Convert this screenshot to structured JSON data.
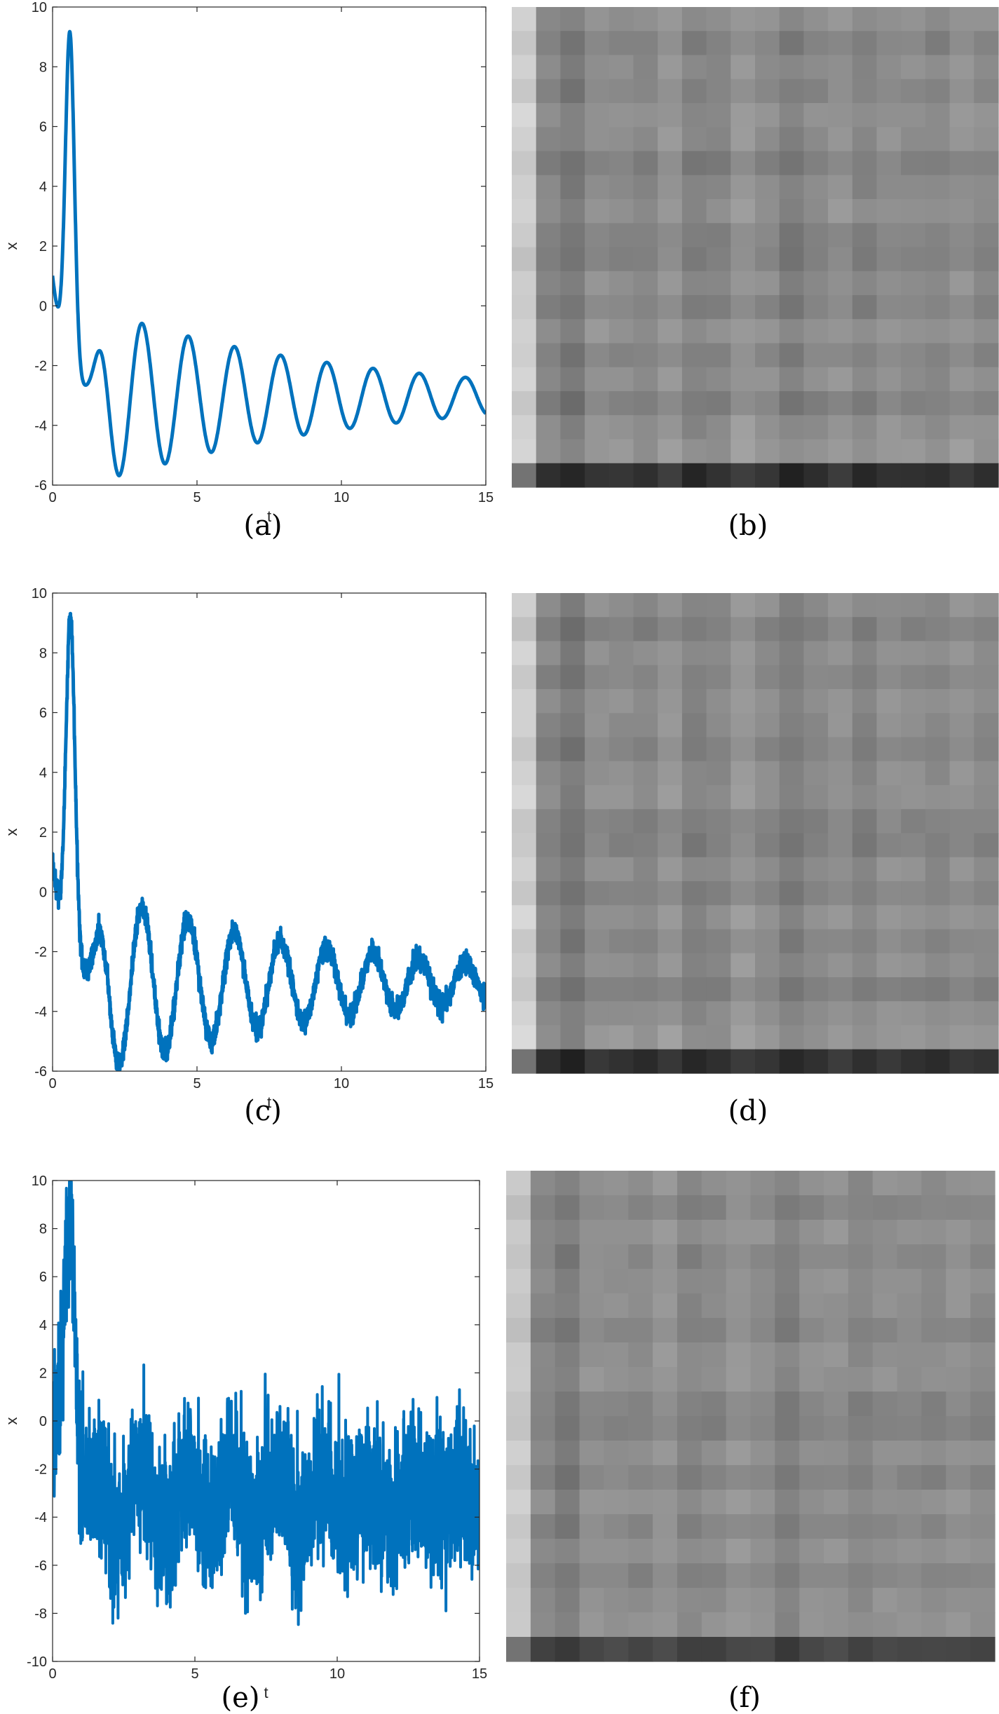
{
  "colors": {
    "line": "#0072BD",
    "axis": "#262626",
    "background": "#ffffff"
  },
  "chart_data": [
    {
      "panel": "a",
      "caption": "(a)",
      "type": "line",
      "xlabel": "t",
      "ylabel": "x",
      "xlim": [
        0,
        15
      ],
      "ylim": [
        -6,
        10
      ],
      "xticks": [
        "0",
        "5",
        "10",
        "15"
      ],
      "yticks": [
        "-6",
        "-4",
        "-2",
        "0",
        "2",
        "4",
        "6",
        "8",
        "10"
      ],
      "grid": false,
      "noise": 0,
      "model": {
        "x0": 1.0,
        "t_peak": 0.6,
        "peak": 8.1,
        "peak_width": 0.22,
        "offset": -3.05,
        "A0": 2.7,
        "decay": 0.118,
        "period": 1.6,
        "t_min": 2.3
      },
      "series": [
        {
          "x": [
            0,
            0.6,
            1.3,
            2.3,
            3.0,
            3.85,
            4.6,
            5.45,
            6.15,
            7.0,
            7.75,
            8.6,
            9.3,
            10.15,
            10.9,
            11.75,
            12.5,
            13.3,
            14.05,
            14.85,
            15
          ],
          "y": [
            1.0,
            8.1,
            -1.0,
            -5.6,
            -1.4,
            -5.3,
            -1.6,
            -5.0,
            -1.9,
            -4.8,
            -2.1,
            -4.6,
            -2.3,
            -4.4,
            -2.5,
            -4.2,
            -2.6,
            -4.1,
            -2.75,
            -4.0,
            -2.9
          ]
        }
      ]
    },
    {
      "panel": "b",
      "caption": "(b)",
      "type": "heatmap",
      "rows": 20,
      "cols": 20,
      "colormap": "gray",
      "grid": false,
      "col_levels": [
        0.8,
        0.52,
        0.47,
        0.55,
        0.54,
        0.52,
        0.57,
        0.5,
        0.52,
        0.58,
        0.54,
        0.49,
        0.53,
        0.56,
        0.51,
        0.55,
        0.54,
        0.52,
        0.56,
        0.53
      ],
      "row_levels": [
        0.03,
        -0.02,
        0.02,
        -0.01,
        0.03,
        0.02,
        -0.03,
        0.01,
        0.03,
        -0.02,
        -0.03,
        0.02,
        -0.02,
        0.04,
        -0.01,
        0.02,
        -0.03,
        0.03,
        0.05,
        -0.34
      ]
    },
    {
      "panel": "c",
      "caption": "(c)",
      "type": "line",
      "xlabel": "t",
      "ylabel": "x",
      "xlim": [
        0,
        15
      ],
      "ylim": [
        -6,
        10
      ],
      "xticks": [
        "0",
        "5",
        "10",
        "15"
      ],
      "yticks": [
        "-6",
        "-4",
        "-2",
        "0",
        "2",
        "4",
        "6",
        "8",
        "10"
      ],
      "grid": false,
      "noise": 0.18,
      "model": {
        "x0": 1.0,
        "t_peak": 0.62,
        "peak": 8.2,
        "peak_width": 0.22,
        "offset": -3.05,
        "A0": 2.8,
        "decay": 0.118,
        "period": 1.6,
        "t_min": 2.3
      },
      "series": [
        {
          "x": [
            0,
            0.62,
            1.3,
            2.3,
            3.0,
            3.85,
            4.6,
            5.45,
            6.15,
            7.0,
            7.75,
            8.6,
            9.3,
            10.15,
            10.9,
            11.75,
            12.5,
            13.3,
            14.05,
            14.85,
            15
          ],
          "y": [
            0.9,
            8.2,
            -0.8,
            -5.7,
            -1.2,
            -5.4,
            -1.5,
            -5.1,
            -1.8,
            -4.9,
            -2.1,
            -4.7,
            -2.2,
            -4.4,
            -2.4,
            -4.3,
            -2.5,
            -4.1,
            -2.6,
            -4.1,
            -2.9
          ]
        }
      ]
    },
    {
      "panel": "d",
      "caption": "(d)",
      "type": "heatmap",
      "rows": 20,
      "cols": 20,
      "colormap": "gray",
      "grid": false,
      "col_levels": [
        0.8,
        0.52,
        0.47,
        0.55,
        0.54,
        0.52,
        0.57,
        0.5,
        0.52,
        0.58,
        0.54,
        0.49,
        0.53,
        0.56,
        0.51,
        0.55,
        0.54,
        0.52,
        0.56,
        0.53
      ],
      "row_levels": [
        0.02,
        -0.03,
        0.02,
        -0.01,
        0.03,
        0.01,
        -0.02,
        0.02,
        0.03,
        -0.02,
        -0.03,
        0.02,
        -0.02,
        0.03,
        -0.01,
        0.02,
        -0.03,
        0.02,
        0.05,
        -0.34
      ]
    },
    {
      "panel": "e",
      "caption": "(e)",
      "type": "line",
      "xlabel": "t",
      "ylabel": "x",
      "xlim": [
        0,
        15
      ],
      "ylim": [
        -10,
        10
      ],
      "xticks": [
        "0",
        "5",
        "10",
        "15"
      ],
      "yticks": [
        "-10",
        "-8",
        "-6",
        "-4",
        "-2",
        "0",
        "2",
        "4",
        "6",
        "8",
        "10"
      ],
      "grid": false,
      "noise": 1.5,
      "model": {
        "x0": 1.0,
        "t_peak": 0.6,
        "peak": 7.5,
        "peak_width": 0.25,
        "offset": -3.3,
        "A0": 1.6,
        "decay": 0.1,
        "period": 1.6,
        "t_min": 2.3
      },
      "series": [
        {
          "x": [
            0,
            0.5,
            0.6,
            1.0,
            2.3,
            4.0,
            4.6,
            9.3,
            15
          ],
          "y": [
            1.0,
            9.1,
            8.0,
            -1.0,
            -8.2,
            -7.6,
            -2.0,
            1.1,
            -3.5
          ]
        }
      ]
    },
    {
      "panel": "f",
      "caption": "(f)",
      "type": "heatmap",
      "rows": 20,
      "cols": 20,
      "colormap": "gray",
      "grid": false,
      "col_levels": [
        0.78,
        0.53,
        0.48,
        0.56,
        0.55,
        0.53,
        0.57,
        0.51,
        0.53,
        0.57,
        0.55,
        0.5,
        0.54,
        0.56,
        0.52,
        0.55,
        0.55,
        0.53,
        0.56,
        0.54
      ],
      "row_levels": [
        0.02,
        -0.02,
        0.02,
        -0.01,
        0.02,
        0.01,
        -0.02,
        0.02,
        0.02,
        -0.02,
        -0.03,
        0.02,
        -0.02,
        0.03,
        -0.01,
        0.02,
        -0.02,
        0.02,
        0.03,
        -0.27
      ]
    }
  ]
}
